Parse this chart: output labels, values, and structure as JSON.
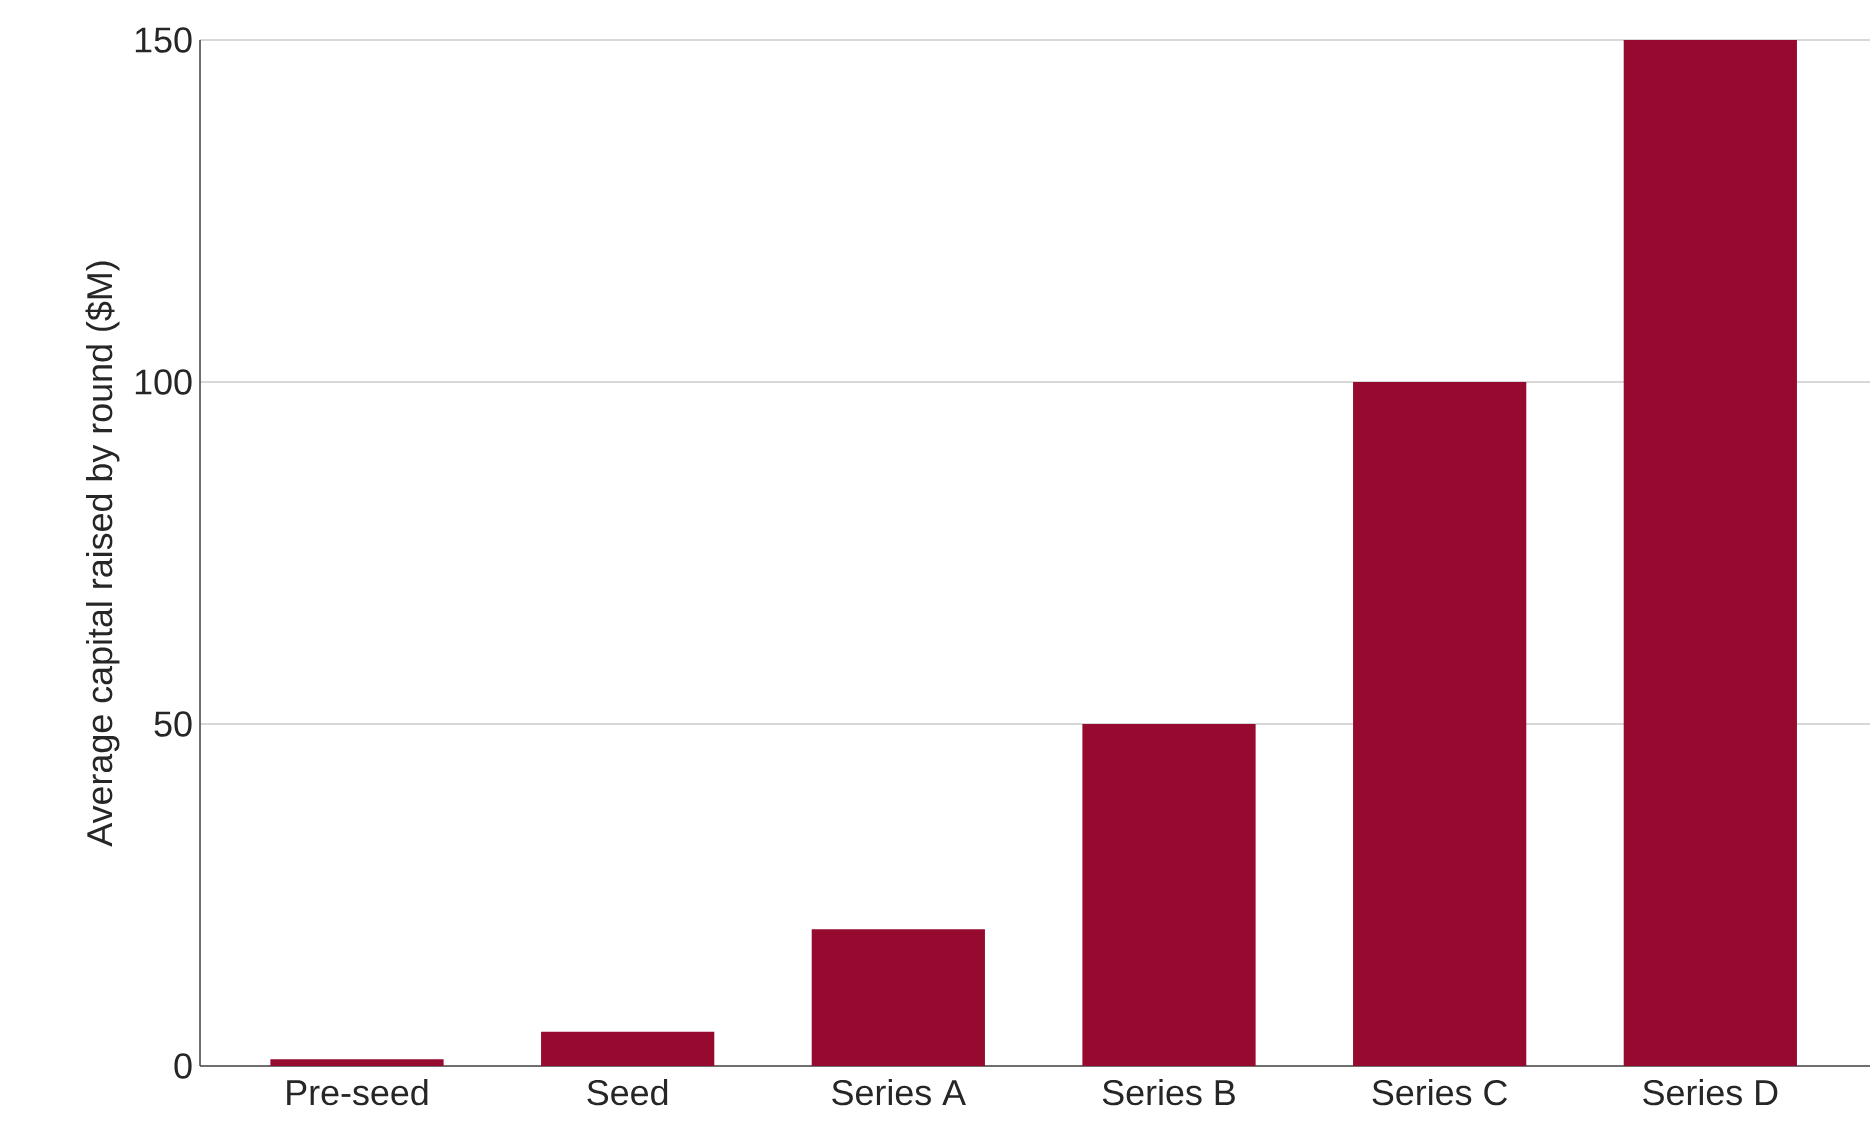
{
  "chart_data": {
    "type": "bar",
    "ylabel": "Average capital raised by round ($M)",
    "categories": [
      "Pre-seed",
      "Seed",
      "Series A",
      "Series B",
      "Series C",
      "Series D"
    ],
    "values": [
      1,
      5,
      20,
      50,
      100,
      150
    ],
    "color": "#960a2f",
    "ylim": [
      0,
      150
    ],
    "yticks": [
      0,
      50,
      100,
      150
    ],
    "grid": "y"
  }
}
